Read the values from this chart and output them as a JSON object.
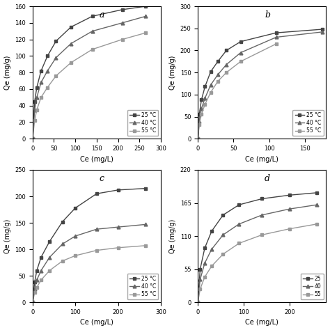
{
  "subplot_a": {
    "label": "a",
    "xlabel": "Ce (mg/L)",
    "ylabel": "Qe (mg/g)",
    "xlim": [
      0,
      300
    ],
    "ylim": [
      0,
      160
    ],
    "yticks": [
      0,
      20,
      40,
      60,
      80,
      100,
      120,
      140,
      160
    ],
    "xticks": [
      0,
      50,
      100,
      150,
      200,
      250,
      300
    ],
    "series": [
      {
        "label": "25 °C",
        "x": [
          0,
          5,
          10,
          20,
          35,
          55,
          90,
          140,
          210,
          265
        ],
        "y": [
          0,
          45,
          62,
          82,
          100,
          118,
          135,
          148,
          156,
          160
        ],
        "marker": "s",
        "color": "#555555"
      },
      {
        "label": "40 °C",
        "x": [
          0,
          5,
          10,
          20,
          35,
          55,
          90,
          140,
          210,
          265
        ],
        "y": [
          0,
          35,
          50,
          68,
          82,
          98,
          115,
          130,
          140,
          148
        ],
        "marker": "^",
        "color": "#777777"
      },
      {
        "label": "55 °C",
        "x": [
          0,
          5,
          10,
          20,
          35,
          55,
          90,
          140,
          210,
          265
        ],
        "y": [
          0,
          22,
          35,
          50,
          62,
          76,
          92,
          108,
          120,
          128
        ],
        "marker": "s",
        "color": "#999999"
      }
    ]
  },
  "subplot_b": {
    "label": "b",
    "xlabel": "Ce (mg/L)",
    "ylabel": "Qe (mg/g)",
    "xlim": [
      0,
      180
    ],
    "ylim": [
      0,
      300
    ],
    "yticks": [
      0,
      50,
      100,
      150,
      200,
      250,
      300
    ],
    "xticks": [
      0,
      50,
      100,
      150
    ],
    "series": [
      {
        "label": "25 °C",
        "x": [
          0,
          2,
          5,
          10,
          18,
          28,
          40,
          60,
          110,
          175
        ],
        "y": [
          0,
          55,
          88,
          118,
          152,
          175,
          200,
          220,
          240,
          248
        ],
        "marker": "s",
        "color": "#555555"
      },
      {
        "label": "40 °C",
        "x": [
          0,
          2,
          5,
          10,
          18,
          28,
          40,
          60,
          110,
          175
        ],
        "y": [
          0,
          40,
          68,
          92,
          122,
          145,
          168,
          195,
          230,
          242
        ],
        "marker": "^",
        "color": "#777777"
      },
      {
        "label": "55 °C",
        "x": [
          0,
          2,
          5,
          10,
          18,
          28,
          40,
          60,
          110
        ],
        "y": [
          0,
          32,
          55,
          78,
          105,
          130,
          150,
          175,
          215
        ],
        "marker": "s",
        "color": "#999999"
      }
    ]
  },
  "subplot_c": {
    "label": "c",
    "xlabel": "Ce (mg/L)",
    "ylabel": "Qe (mg/g)",
    "xlim": [
      0,
      300
    ],
    "ylim": [
      0,
      250
    ],
    "yticks": [
      0,
      50,
      100,
      150,
      200,
      250
    ],
    "xticks": [
      0,
      100,
      200,
      300
    ],
    "series": [
      {
        "label": "25 °C",
        "x": [
          0,
          5,
          10,
          20,
          40,
          70,
          100,
          150,
          200,
          265
        ],
        "y": [
          0,
          38,
          60,
          85,
          115,
          152,
          178,
          205,
          212,
          215
        ],
        "marker": "s",
        "color": "#555555"
      },
      {
        "label": "40 °C",
        "x": [
          0,
          5,
          10,
          20,
          40,
          70,
          100,
          150,
          200,
          265
        ],
        "y": [
          0,
          25,
          42,
          60,
          85,
          110,
          125,
          138,
          142,
          147
        ],
        "marker": "^",
        "color": "#777777"
      },
      {
        "label": "55 °C",
        "x": [
          0,
          5,
          10,
          20,
          40,
          70,
          100,
          150,
          200,
          265
        ],
        "y": [
          0,
          18,
          28,
          42,
          60,
          78,
          88,
          98,
          103,
          107
        ],
        "marker": "s",
        "color": "#999999"
      }
    ]
  },
  "subplot_d": {
    "label": "d",
    "xlabel": "Ce (mg/L)",
    "ylabel": "Qe (mg/g)",
    "xlim": [
      0,
      280
    ],
    "ylim": [
      0,
      220
    ],
    "yticks": [
      0,
      55,
      110,
      165,
      220
    ],
    "xticks": [
      0,
      100,
      200
    ],
    "series": [
      {
        "label": "25",
        "x": [
          0,
          5,
          15,
          30,
          55,
          90,
          140,
          200,
          260
        ],
        "y": [
          0,
          55,
          90,
          118,
          145,
          162,
          172,
          178,
          182
        ],
        "marker": "s",
        "color": "#555555"
      },
      {
        "label": "40",
        "x": [
          0,
          5,
          15,
          30,
          55,
          90,
          140,
          200,
          260
        ],
        "y": [
          0,
          38,
          65,
          88,
          112,
          130,
          145,
          155,
          162
        ],
        "marker": "^",
        "color": "#777777"
      },
      {
        "label": "55",
        "x": [
          0,
          5,
          15,
          30,
          55,
          90,
          140,
          200,
          260
        ],
        "y": [
          0,
          22,
          42,
          60,
          80,
          98,
          112,
          122,
          130
        ],
        "marker": "s",
        "color": "#999999"
      }
    ]
  }
}
